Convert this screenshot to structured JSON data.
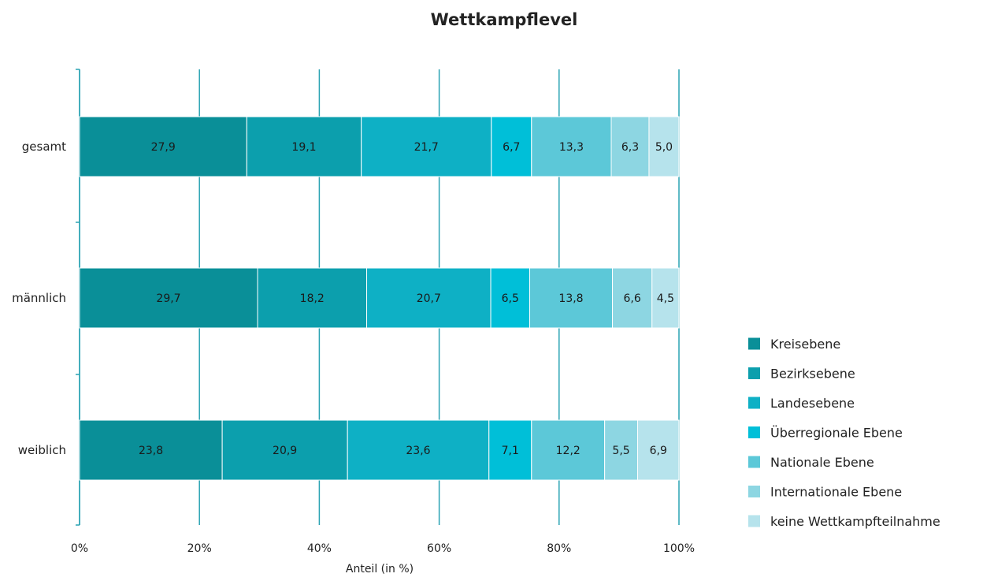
{
  "chart_data": {
    "type": "bar",
    "orientation": "horizontal",
    "stacked": true,
    "title": "Wettkampflevel",
    "xlabel": "Anteil  (in %)",
    "ylabel": "",
    "xlim": [
      0,
      100
    ],
    "x_ticks": [
      "0%",
      "20%",
      "40%",
      "60%",
      "80%",
      "100%"
    ],
    "grid": "vertical",
    "legend_position": "right",
    "categories": [
      "gesamt",
      "männlich",
      "weiblich"
    ],
    "series": [
      {
        "name": "Kreisebene",
        "color": "#0a8f98",
        "values": [
          27.9,
          29.7,
          23.8
        ],
        "labels": [
          "27,9",
          "29,7",
          "23,8"
        ]
      },
      {
        "name": "Bezirksebene",
        "color": "#0c9fad",
        "values": [
          19.1,
          18.2,
          20.9
        ],
        "labels": [
          "19,1",
          "18,2",
          "20,9"
        ]
      },
      {
        "name": "Landesebene",
        "color": "#0eb0c5",
        "values": [
          21.7,
          20.7,
          23.6
        ],
        "labels": [
          "21,7",
          "20,7",
          "23,6"
        ]
      },
      {
        "name": "Überregionale Ebene",
        "color": "#00bfd8",
        "values": [
          6.7,
          6.5,
          7.1
        ],
        "labels": [
          "6,7",
          "6,5",
          "7,1"
        ]
      },
      {
        "name": "Nationale Ebene",
        "color": "#5cc8d8",
        "values": [
          13.3,
          13.8,
          12.2
        ],
        "labels": [
          "13,3",
          "13,8",
          "12,2"
        ]
      },
      {
        "name": "Internationale Ebene",
        "color": "#8dd6e2",
        "values": [
          6.3,
          6.6,
          5.5
        ],
        "labels": [
          "6,3",
          "6,6",
          "5,5"
        ]
      },
      {
        "name": "keine Wettkampfteilnahme",
        "color": "#b6e3ec",
        "values": [
          5.0,
          4.5,
          6.9
        ],
        "labels": [
          "5,0",
          "4,5",
          "6,9"
        ]
      }
    ]
  }
}
